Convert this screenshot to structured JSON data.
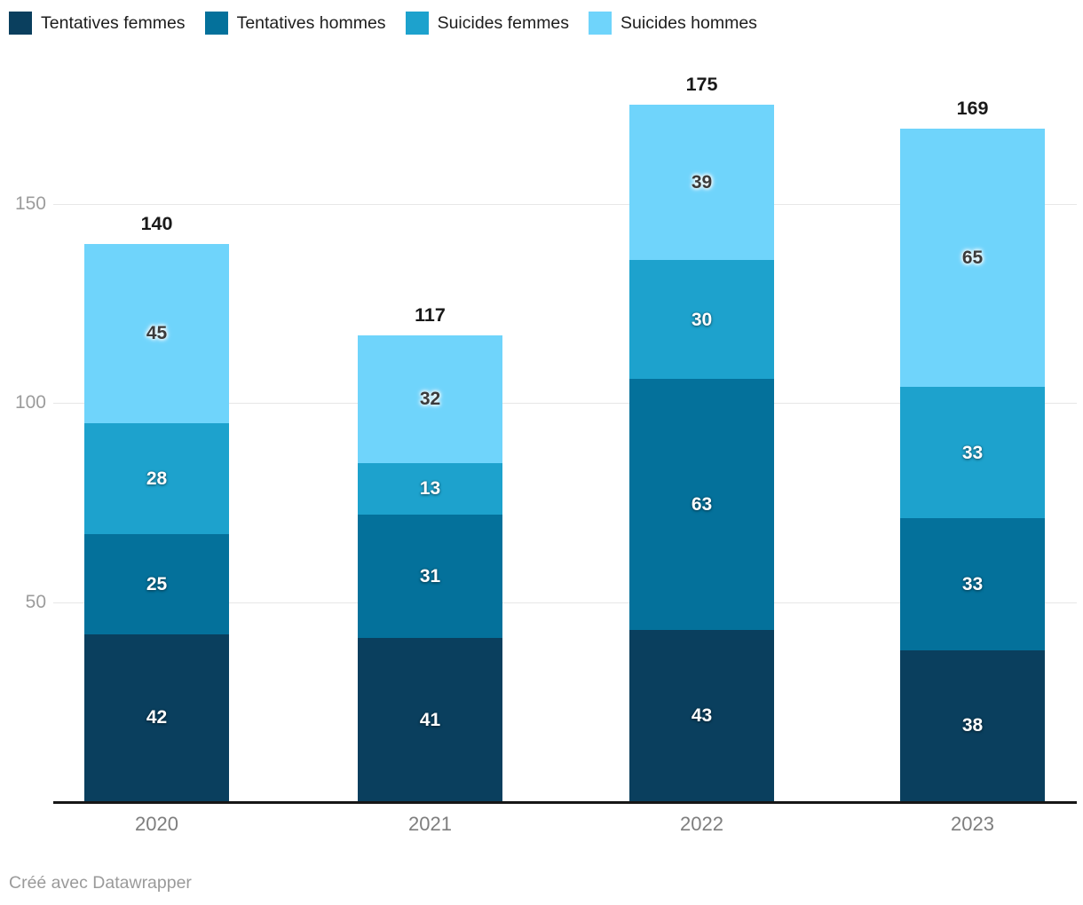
{
  "chart_data": {
    "type": "bar",
    "stacked": true,
    "categories": [
      "2020",
      "2021",
      "2022",
      "2023"
    ],
    "series": [
      {
        "name": "Tentatives femmes",
        "color": "#0a3f5e",
        "label_color": "#ffffff",
        "values": [
          42,
          41,
          43,
          38
        ]
      },
      {
        "name": "Tentatives hommes",
        "color": "#04719b",
        "label_color": "#ffffff",
        "values": [
          25,
          31,
          63,
          33
        ]
      },
      {
        "name": "Suicides femmes",
        "color": "#1da2cd",
        "label_color": "#ffffff",
        "values": [
          28,
          13,
          30,
          33
        ]
      },
      {
        "name": "Suicides hommes",
        "color": "#6fd4fb",
        "label_color": "#3b3b3b",
        "values": [
          45,
          32,
          39,
          65
        ]
      }
    ],
    "totals": [
      140,
      117,
      175,
      169
    ],
    "y_axis": {
      "ticks": [
        50,
        100,
        150
      ]
    },
    "ylim": [
      0,
      187
    ],
    "grid": true,
    "legend_position": "top",
    "title": ""
  },
  "footer": {
    "credit": "Créé avec Datawrapper"
  }
}
